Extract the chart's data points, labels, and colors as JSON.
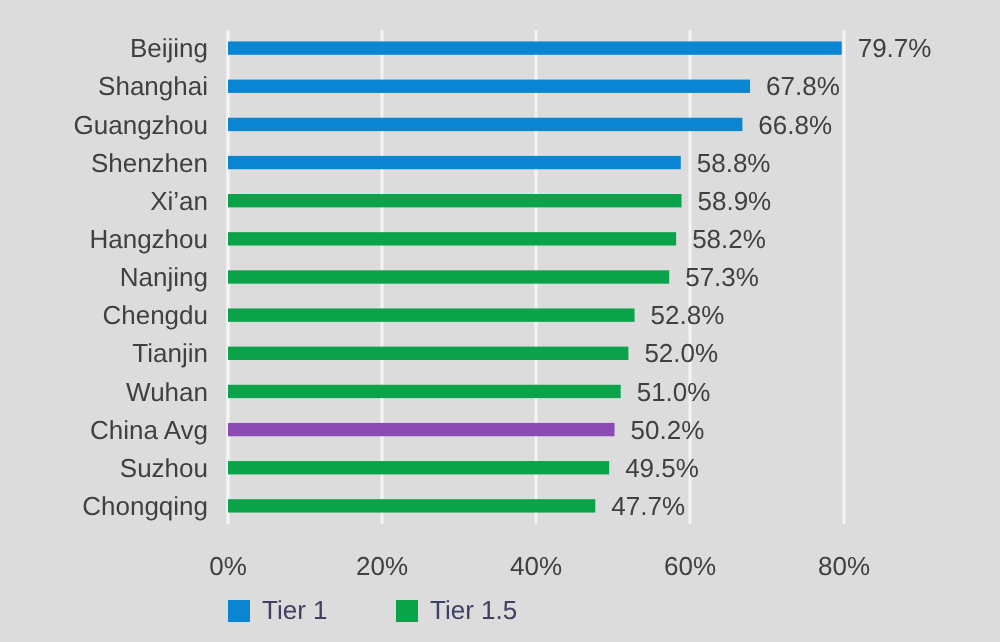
{
  "chart_data": {
    "type": "bar",
    "orientation": "horizontal",
    "categories": [
      "Beijing",
      "Shanghai",
      "Guangzhou",
      "Shenzhen",
      "Xi’an",
      "Hangzhou",
      "Nanjing",
      "Chengdu",
      "Tianjin",
      "Wuhan",
      "China Avg",
      "Suzhou",
      "Chongqing"
    ],
    "series": [
      {
        "name": "Tier 1",
        "color": "#0a85d1",
        "values": [
          79.7,
          67.8,
          66.8,
          58.8,
          null,
          null,
          null,
          null,
          null,
          null,
          null,
          null,
          null
        ],
        "value_labels": [
          "79.7%",
          "67.8%",
          "66.8%",
          "58.8%",
          null,
          null,
          null,
          null,
          null,
          null,
          null,
          null,
          null
        ]
      },
      {
        "name": "Tier 1.5",
        "color": "#0aa34a",
        "values": [
          null,
          null,
          null,
          null,
          58.9,
          58.2,
          57.3,
          52.8,
          52.0,
          51.0,
          null,
          49.5,
          47.7
        ],
        "value_labels": [
          null,
          null,
          null,
          null,
          "58.9%",
          "58.2%",
          "57.3%",
          "52.8%",
          "52.0%",
          "51.0%",
          null,
          "49.5%",
          "47.7%"
        ]
      },
      {
        "color": "#8a4bb5",
        "values": [
          null,
          null,
          null,
          null,
          null,
          null,
          null,
          null,
          null,
          null,
          50.2,
          null,
          null
        ],
        "value_labels": [
          null,
          null,
          null,
          null,
          null,
          null,
          null,
          null,
          null,
          null,
          "50.2%",
          null,
          null
        ]
      }
    ],
    "xlim": [
      0,
      80
    ],
    "xticks": [
      {
        "value": 0,
        "label": "0%"
      },
      {
        "value": 20,
        "label": "20%"
      },
      {
        "value": 40,
        "label": "40%"
      },
      {
        "value": 60,
        "label": "60%"
      },
      {
        "value": 80,
        "label": "80%"
      }
    ],
    "grid": "x",
    "legend": "bottom left"
  }
}
